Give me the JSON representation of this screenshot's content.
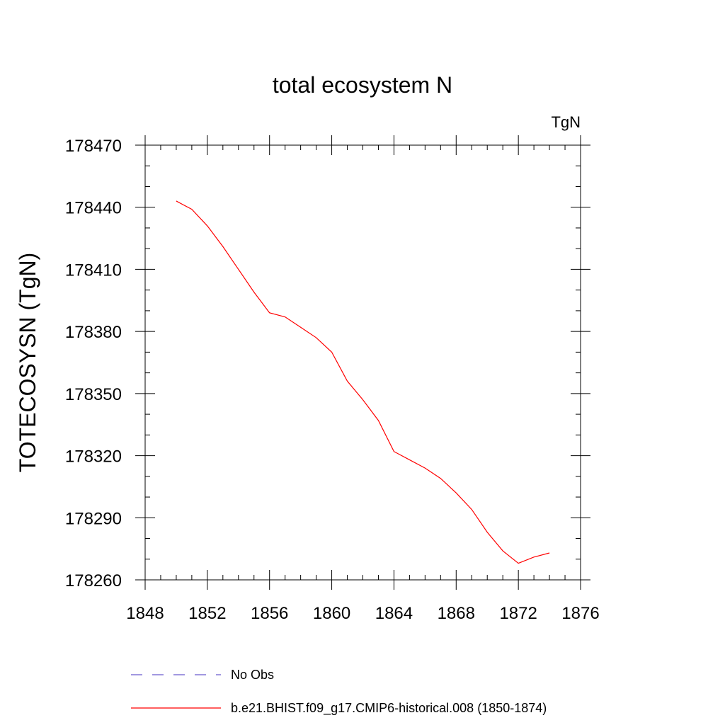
{
  "chart_data": {
    "type": "line",
    "title": "total ecosystem N",
    "units_label": "TgN",
    "ylabel": "TOTECOSYSN  (TgN)",
    "xlabel": "",
    "xlim": [
      1848,
      1876
    ],
    "ylim": [
      178260,
      178470
    ],
    "x_ticks": [
      1848,
      1852,
      1856,
      1860,
      1864,
      1868,
      1872,
      1876
    ],
    "y_ticks": [
      178260,
      178290,
      178320,
      178350,
      178380,
      178410,
      178440,
      178470
    ],
    "grid": false,
    "series": [
      {
        "name": "b.e21.BHIST.f09_g17.CMIP6-historical.008 (1850-1874)",
        "color": "#ff0000",
        "x": [
          1850,
          1851,
          1852,
          1853,
          1854,
          1855,
          1856,
          1857,
          1858,
          1859,
          1860,
          1861,
          1862,
          1863,
          1864,
          1865,
          1866,
          1867,
          1868,
          1869,
          1870,
          1871,
          1872,
          1873,
          1874
        ],
        "y": [
          178443,
          178439,
          178431,
          178421,
          178410,
          178399,
          178389,
          178387,
          178382,
          178377,
          178370,
          178356,
          178347,
          178337,
          178322,
          178318,
          178314,
          178309,
          178302,
          178294,
          178283,
          178274,
          178268,
          178271,
          178273
        ]
      }
    ],
    "legend": {
      "placement": "bottom",
      "entries": [
        {
          "label": "No Obs",
          "color": "#6a5acd",
          "style": "dashed"
        },
        {
          "label": "b.e21.BHIST.f09_g17.CMIP6-historical.008 (1850-1874)",
          "color": "#ff0000",
          "style": "solid"
        }
      ]
    }
  }
}
